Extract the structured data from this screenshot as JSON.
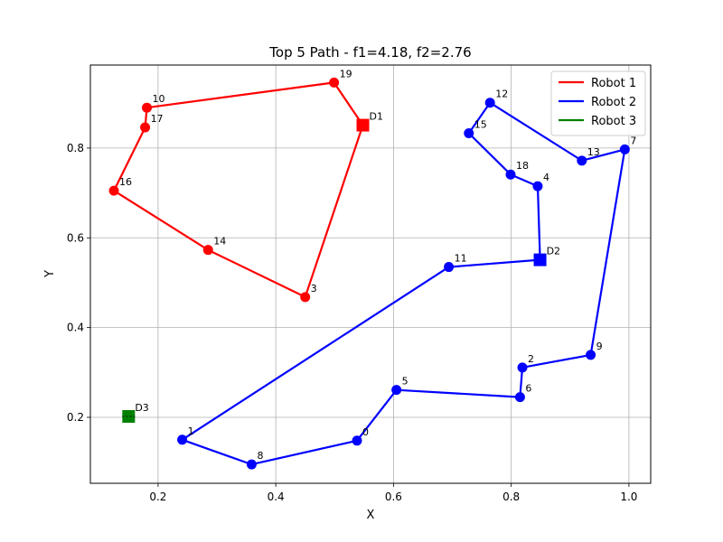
{
  "chart_data": {
    "type": "scatter",
    "title": "Top 5 Path - f1=4.18, f2=2.76",
    "xlabel": "X",
    "ylabel": "Y",
    "xlim": [
      0.085,
      1.037
    ],
    "ylim": [
      0.053,
      0.985
    ],
    "xticks": [
      0.2,
      0.4,
      0.6,
      0.8,
      1.0
    ],
    "xtick_labels": [
      "0.2",
      "0.4",
      "0.6",
      "0.8",
      "1.0"
    ],
    "yticks": [
      0.2,
      0.4,
      0.6,
      0.8
    ],
    "ytick_labels": [
      "0.2",
      "0.4",
      "0.6",
      "0.8"
    ],
    "grid": true,
    "legend_position": "top-right",
    "series": [
      {
        "name": "Robot 1",
        "color": "#ff0000",
        "depot": {
          "label": "D1",
          "x": 0.548,
          "y": 0.851
        },
        "path": [
          {
            "label": "D1",
            "x": 0.548,
            "y": 0.851
          },
          {
            "label": "19",
            "x": 0.499,
            "y": 0.946
          },
          {
            "label": "10",
            "x": 0.181,
            "y": 0.89
          },
          {
            "label": "17",
            "x": 0.178,
            "y": 0.846
          },
          {
            "label": "16",
            "x": 0.125,
            "y": 0.705
          },
          {
            "label": "14",
            "x": 0.285,
            "y": 0.573
          },
          {
            "label": "3",
            "x": 0.45,
            "y": 0.468
          },
          {
            "label": "D1",
            "x": 0.548,
            "y": 0.851
          }
        ]
      },
      {
        "name": "Robot 2",
        "color": "#0000ff",
        "depot": {
          "label": "D2",
          "x": 0.849,
          "y": 0.551
        },
        "path": [
          {
            "label": "D2",
            "x": 0.849,
            "y": 0.551
          },
          {
            "label": "11",
            "x": 0.694,
            "y": 0.535
          },
          {
            "label": "1",
            "x": 0.241,
            "y": 0.15
          },
          {
            "label": "8",
            "x": 0.359,
            "y": 0.095
          },
          {
            "label": "0",
            "x": 0.538,
            "y": 0.148
          },
          {
            "label": "5",
            "x": 0.605,
            "y": 0.261
          },
          {
            "label": "6",
            "x": 0.815,
            "y": 0.245
          },
          {
            "label": "2",
            "x": 0.819,
            "y": 0.311
          },
          {
            "label": "9",
            "x": 0.935,
            "y": 0.339
          },
          {
            "label": "7",
            "x": 0.993,
            "y": 0.797
          },
          {
            "label": "13",
            "x": 0.92,
            "y": 0.772
          },
          {
            "label": "12",
            "x": 0.764,
            "y": 0.901
          },
          {
            "label": "15",
            "x": 0.728,
            "y": 0.833
          },
          {
            "label": "18",
            "x": 0.799,
            "y": 0.741
          },
          {
            "label": "4",
            "x": 0.845,
            "y": 0.715
          },
          {
            "label": "D2",
            "x": 0.849,
            "y": 0.551
          }
        ]
      },
      {
        "name": "Robot 3",
        "color": "#008000",
        "depot": {
          "label": "D3",
          "x": 0.15,
          "y": 0.202
        },
        "path": []
      }
    ]
  }
}
